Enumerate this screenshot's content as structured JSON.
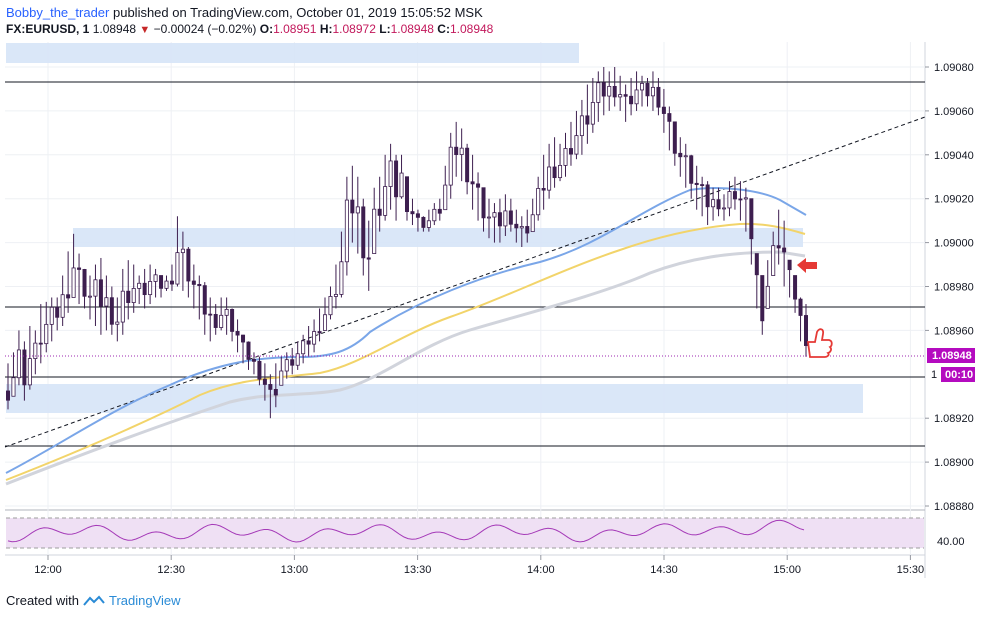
{
  "header": {
    "author": "Bobby_the_trader",
    "published_text": "published on TradingView.com, October 01, 2019 15:05:52 MSK",
    "symbol": "FX:EURUSD, 1",
    "last": "1.08948",
    "change": "−0.00024 (−0.02%)",
    "o_label": "O:",
    "o": "1.08951",
    "h_label": "H:",
    "h": "1.08972",
    "l_label": "L:",
    "l": "1.08948",
    "c_label": "C:",
    "c": "1.08948"
  },
  "footer": {
    "created_with": "Created with",
    "brand": "TradingView"
  },
  "price_axis": {
    "labels": [
      "1.09080",
      "1.09060",
      "1.09040",
      "1.09020",
      "1.09000",
      "1.08980",
      "1.08960",
      "1.08920",
      "1.08900",
      "1.08880"
    ],
    "current_price": "1.08948",
    "countdown": "00:10",
    "partial_label": "1"
  },
  "oscillator": {
    "label": "40.00"
  },
  "chart_data": {
    "type": "candlestick",
    "symbol": "FX:EURUSD",
    "timeframe": "1",
    "x_ticks": [
      "12:00",
      "12:30",
      "13:00",
      "13:30",
      "14:00",
      "14:30",
      "15:00",
      "15:30"
    ],
    "y_range": [
      1.08875,
      1.09092
    ],
    "candles_hl": [
      [
        1.08924,
        1.08945
      ],
      [
        1.0893,
        1.0895
      ],
      [
        1.08935,
        1.0896
      ],
      [
        1.08928,
        1.08955
      ],
      [
        1.08933,
        1.08962
      ],
      [
        1.0894,
        1.0896
      ],
      [
        1.08945,
        1.08972
      ],
      [
        1.0895,
        1.08973
      ],
      [
        1.08955,
        1.08975
      ],
      [
        1.0896,
        1.08975
      ],
      [
        1.08962,
        1.08985
      ],
      [
        1.08968,
        1.08996
      ],
      [
        1.08975,
        1.09004
      ],
      [
        1.08972,
        1.08995
      ],
      [
        1.0897,
        1.08988
      ],
      [
        1.08965,
        1.08985
      ],
      [
        1.08962,
        1.0899
      ],
      [
        1.08958,
        1.08993
      ],
      [
        1.0896,
        1.08985
      ],
      [
        1.08958,
        1.0898
      ],
      [
        1.08955,
        1.08975
      ],
      [
        1.08958,
        1.08988
      ],
      [
        1.08965,
        1.08992
      ],
      [
        1.08968,
        1.0899
      ],
      [
        1.08972,
        1.08985
      ],
      [
        1.0897,
        1.08988
      ],
      [
        1.08972,
        1.0899
      ],
      [
        1.08975,
        1.08988
      ],
      [
        1.08975,
        1.08985
      ],
      [
        1.08978,
        1.08985
      ],
      [
        1.08978,
        1.0899
      ],
      [
        1.0898,
        1.09012
      ],
      [
        1.08978,
        1.09005
      ],
      [
        1.08975,
        1.08998
      ],
      [
        1.0897,
        1.0899
      ],
      [
        1.08965,
        1.08985
      ],
      [
        1.08958,
        1.08982
      ],
      [
        1.08955,
        1.08975
      ],
      [
        1.08958,
        1.08972
      ],
      [
        1.0896,
        1.08975
      ],
      [
        1.08958,
        1.08975
      ],
      [
        1.08955,
        1.0897
      ],
      [
        1.0895,
        1.08965
      ],
      [
        1.08945,
        1.08958
      ],
      [
        1.08942,
        1.08955
      ],
      [
        1.0894,
        1.0895
      ],
      [
        1.08935,
        1.08948
      ],
      [
        1.08928,
        1.08945
      ],
      [
        1.0892,
        1.0894
      ],
      [
        1.08925,
        1.08945
      ],
      [
        1.08935,
        1.08948
      ],
      [
        1.08938,
        1.0895
      ],
      [
        1.0894,
        1.08952
      ],
      [
        1.08942,
        1.08955
      ],
      [
        1.08945,
        1.08958
      ],
      [
        1.08948,
        1.08962
      ],
      [
        1.0895,
        1.08965
      ],
      [
        1.08955,
        1.0897
      ],
      [
        1.0896,
        1.08975
      ],
      [
        1.08965,
        1.0898
      ],
      [
        1.0897,
        1.0899
      ],
      [
        1.08975,
        1.09005
      ],
      [
        1.08985,
        1.0903
      ],
      [
        1.09,
        1.09035
      ],
      [
        1.08995,
        1.0903
      ],
      [
        1.08985,
        1.0902
      ],
      [
        1.08978,
        1.0901
      ],
      [
        1.08995,
        1.09025
      ],
      [
        1.09005,
        1.0903
      ],
      [
        1.0901,
        1.0904
      ],
      [
        1.09015,
        1.09045
      ],
      [
        1.0901,
        1.0904
      ],
      [
        1.0902,
        1.0904
      ],
      [
        1.0901,
        1.0903
      ],
      [
        1.09008,
        1.0902
      ],
      [
        1.09005,
        1.09015
      ],
      [
        1.09005,
        1.09012
      ],
      [
        1.09005,
        1.09015
      ],
      [
        1.09008,
        1.09018
      ],
      [
        1.0901,
        1.0902
      ],
      [
        1.09015,
        1.09035
      ],
      [
        1.0902,
        1.0905
      ],
      [
        1.0903,
        1.09055
      ],
      [
        1.09028,
        1.09052
      ],
      [
        1.09022,
        1.09045
      ],
      [
        1.09015,
        1.0904
      ],
      [
        1.0901,
        1.09032
      ],
      [
        1.09005,
        1.09025
      ],
      [
        1.09002,
        1.0902
      ],
      [
        1.09,
        1.09018
      ],
      [
        1.09,
        1.0902
      ],
      [
        1.09003,
        1.09022
      ],
      [
        1.09005,
        1.0902
      ],
      [
        1.09,
        1.09015
      ],
      [
        1.08998,
        1.09012
      ],
      [
        1.09,
        1.09015
      ],
      [
        1.09005,
        1.0902
      ],
      [
        1.0901,
        1.0903
      ],
      [
        1.09015,
        1.0904
      ],
      [
        1.0902,
        1.09045
      ],
      [
        1.09025,
        1.09048
      ],
      [
        1.09028,
        1.09045
      ],
      [
        1.0903,
        1.0905
      ],
      [
        1.09035,
        1.09055
      ],
      [
        1.09038,
        1.0906
      ],
      [
        1.0904,
        1.09065
      ],
      [
        1.09045,
        1.09072
      ],
      [
        1.0905,
        1.09075
      ],
      [
        1.09055,
        1.09078
      ],
      [
        1.09058,
        1.0908
      ],
      [
        1.0906,
        1.09078
      ],
      [
        1.09062,
        1.0908
      ],
      [
        1.0906,
        1.09076
      ],
      [
        1.09055,
        1.09072
      ],
      [
        1.09058,
        1.09075
      ],
      [
        1.0906,
        1.09078
      ],
      [
        1.09062,
        1.09076
      ],
      [
        1.09062,
        1.09075
      ],
      [
        1.0906,
        1.09078
      ],
      [
        1.09058,
        1.09075
      ],
      [
        1.0905,
        1.0907
      ],
      [
        1.09042,
        1.09062
      ],
      [
        1.09035,
        1.09055
      ],
      [
        1.0903,
        1.09048
      ],
      [
        1.09025,
        1.09045
      ],
      [
        1.0902,
        1.0904
      ],
      [
        1.09015,
        1.09035
      ],
      [
        1.09012,
        1.0903
      ],
      [
        1.09008,
        1.09028
      ],
      [
        1.0901,
        1.09025
      ],
      [
        1.09012,
        1.09025
      ],
      [
        1.0901,
        1.09022
      ],
      [
        1.09012,
        1.09028
      ],
      [
        1.09015,
        1.0903
      ],
      [
        1.0901,
        1.09028
      ],
      [
        1.09005,
        1.09025
      ],
      [
        1.0899,
        1.0902
      ],
      [
        1.0897,
        1.08995
      ],
      [
        1.08958,
        1.08985
      ],
      [
        1.0897,
        1.08992
      ],
      [
        1.08985,
        1.09005
      ],
      [
        1.0899,
        1.09015
      ],
      [
        1.0898,
        1.0901
      ],
      [
        1.08975,
        1.08992
      ],
      [
        1.08968,
        1.08985
      ],
      [
        1.08955,
        1.08975
      ],
      [
        1.08948,
        1.08972
      ]
    ]
  }
}
